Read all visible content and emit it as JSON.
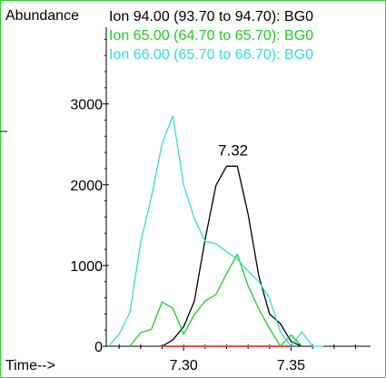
{
  "colors": {
    "frame": "#33cc33",
    "axis": "#000000",
    "baseline": "#e8504a"
  },
  "chart_data": {
    "type": "line",
    "ylabel": "Abundance",
    "xlabel": "Time-->",
    "xlim": [
      7.264,
      7.387
    ],
    "ylim": [
      0,
      3950
    ],
    "x_ticks": [
      7.3,
      7.35
    ],
    "x_tick_labels": [
      "7.30",
      "7.35"
    ],
    "y_ticks": [
      0,
      1000,
      2000,
      3000
    ],
    "y_tick_labels": [
      "0",
      "1000",
      "2000",
      "3000"
    ],
    "series": [
      {
        "name": "Ion  94.00 (93.70 to 94.70): BG0",
        "color": "#000000",
        "x": [
          7.29,
          7.295,
          7.3,
          7.305,
          7.31,
          7.315,
          7.32,
          7.325,
          7.33,
          7.335,
          7.34,
          7.345,
          7.35,
          7.355
        ],
        "y": [
          0,
          80,
          240,
          560,
          1320,
          1990,
          2230,
          2230,
          1640,
          870,
          400,
          280,
          60,
          0
        ]
      },
      {
        "name": "Ion  65.00 (64.70 to 65.70): BG0",
        "color": "#22cc22",
        "x": [
          7.275,
          7.28,
          7.285,
          7.29,
          7.295,
          7.3,
          7.305,
          7.31,
          7.315,
          7.32,
          7.325,
          7.33,
          7.335,
          7.34,
          7.345,
          7.35,
          7.355
        ],
        "y": [
          0,
          170,
          210,
          550,
          470,
          150,
          390,
          560,
          640,
          900,
          1140,
          750,
          460,
          220,
          0,
          140,
          0
        ]
      },
      {
        "name": "Ion  66.00 (65.70 to 66.70): BG0",
        "color": "#33dddd",
        "x": [
          7.265,
          7.27,
          7.275,
          7.28,
          7.285,
          7.29,
          7.295,
          7.3,
          7.305,
          7.31,
          7.315,
          7.32,
          7.325,
          7.33,
          7.335,
          7.34,
          7.345,
          7.35,
          7.355,
          7.36,
          7.365
        ],
        "y": [
          0,
          150,
          420,
          1290,
          1850,
          2510,
          2850,
          2000,
          1580,
          1300,
          1270,
          1170,
          1080,
          930,
          800,
          590,
          180,
          0,
          180,
          0,
          0
        ]
      },
      {
        "name": "",
        "color": "#e8504a",
        "x": [
          7.29,
          7.35
        ],
        "y": [
          0,
          0
        ]
      }
    ],
    "annotations": [
      {
        "text": "7.32",
        "x": 7.323,
        "y": 2230
      }
    ]
  }
}
